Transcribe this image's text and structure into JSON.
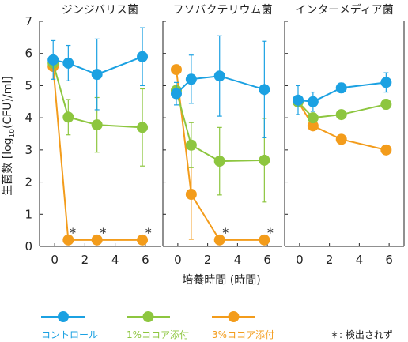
{
  "colors": {
    "blue": "#1ba1e2",
    "green": "#8dc63f",
    "orange": "#f39c1b",
    "axis": "#222222"
  },
  "chart_data": {
    "type": "line",
    "ylabel_main": "生菌数 [log",
    "ylabel_sub": "10",
    "ylabel_end": "(CFU)/ml]",
    "xlabel": "培養時間 (時間)",
    "ylim": [
      0,
      7
    ],
    "yticks": [
      "0",
      "1",
      "2",
      "3",
      "4",
      "5",
      "6",
      "7"
    ],
    "xticks": [
      "0",
      "2",
      "4",
      "6"
    ],
    "grid": false,
    "legend_position": "bottom",
    "legend": [
      {
        "key": "control",
        "label": "コントロール",
        "color": "#1ba1e2"
      },
      {
        "key": "cocoa1",
        "label": "1%ココア添付",
        "color": "#8dc63f"
      },
      {
        "key": "cocoa3",
        "label": "3%ココア添付",
        "color": "#f39c1b"
      }
    ],
    "note": "＊: 検出されず",
    "panels": [
      {
        "title": "ジンジバリス菌",
        "series": [
          {
            "key": "control",
            "x": [
              -0.1,
              0.9,
              2.8,
              5.8
            ],
            "y": [
              5.8,
              5.7,
              5.35,
              5.9
            ],
            "err": [
              0.6,
              0.55,
              1.1,
              0.9
            ]
          },
          {
            "key": "cocoa1",
            "x": [
              -0.1,
              0.9,
              2.8,
              5.8
            ],
            "y": [
              5.7,
              4.02,
              3.78,
              3.7
            ],
            "err": [
              0,
              0.55,
              0.85,
              1.2
            ]
          },
          {
            "key": "cocoa3",
            "x": [
              -0.1,
              0.9,
              2.8,
              5.8
            ],
            "y": [
              5.6,
              0.2,
              0.2,
              0.2
            ],
            "err": [
              0,
              0,
              0,
              0
            ]
          }
        ],
        "stars": [
          1.2,
          3.2,
          6.2
        ]
      },
      {
        "title": "フソバクテリウム菌",
        "series": [
          {
            "key": "control",
            "x": [
              -0.1,
              0.9,
              2.8,
              5.8
            ],
            "y": [
              4.75,
              5.2,
              5.3,
              4.88
            ],
            "err": [
              0.35,
              0.75,
              1.25,
              1.5
            ]
          },
          {
            "key": "cocoa1",
            "x": [
              -0.1,
              0.9,
              2.8,
              5.8
            ],
            "y": [
              4.85,
              3.15,
              2.65,
              2.68
            ],
            "err": [
              0,
              0.7,
              1.05,
              1.3
            ]
          },
          {
            "key": "cocoa3",
            "x": [
              -0.1,
              0.9,
              2.8,
              5.8
            ],
            "y": [
              5.5,
              1.62,
              0.2,
              0.2
            ],
            "err": [
              0,
              1.4,
              0,
              0
            ]
          }
        ],
        "stars": [
          3.2,
          6.2
        ]
      },
      {
        "title": "インターメディア菌",
        "series": [
          {
            "key": "control",
            "x": [
              -0.1,
              0.9,
              2.8,
              5.8
            ],
            "y": [
              4.55,
              4.5,
              4.93,
              5.1
            ],
            "err": [
              0.45,
              0.3,
              0.15,
              0.3
            ]
          },
          {
            "key": "cocoa1",
            "x": [
              -0.1,
              0.9,
              2.8,
              5.8
            ],
            "y": [
              4.5,
              4.0,
              4.1,
              4.42
            ],
            "err": [
              0,
              0.15,
              0.12,
              0.15
            ]
          },
          {
            "key": "cocoa3",
            "x": [
              -0.1,
              0.9,
              2.8,
              5.8
            ],
            "y": [
              4.5,
              3.75,
              3.33,
              3.0
            ],
            "err": [
              0,
              0.12,
              0.12,
              0.1
            ]
          }
        ],
        "stars": []
      }
    ]
  }
}
